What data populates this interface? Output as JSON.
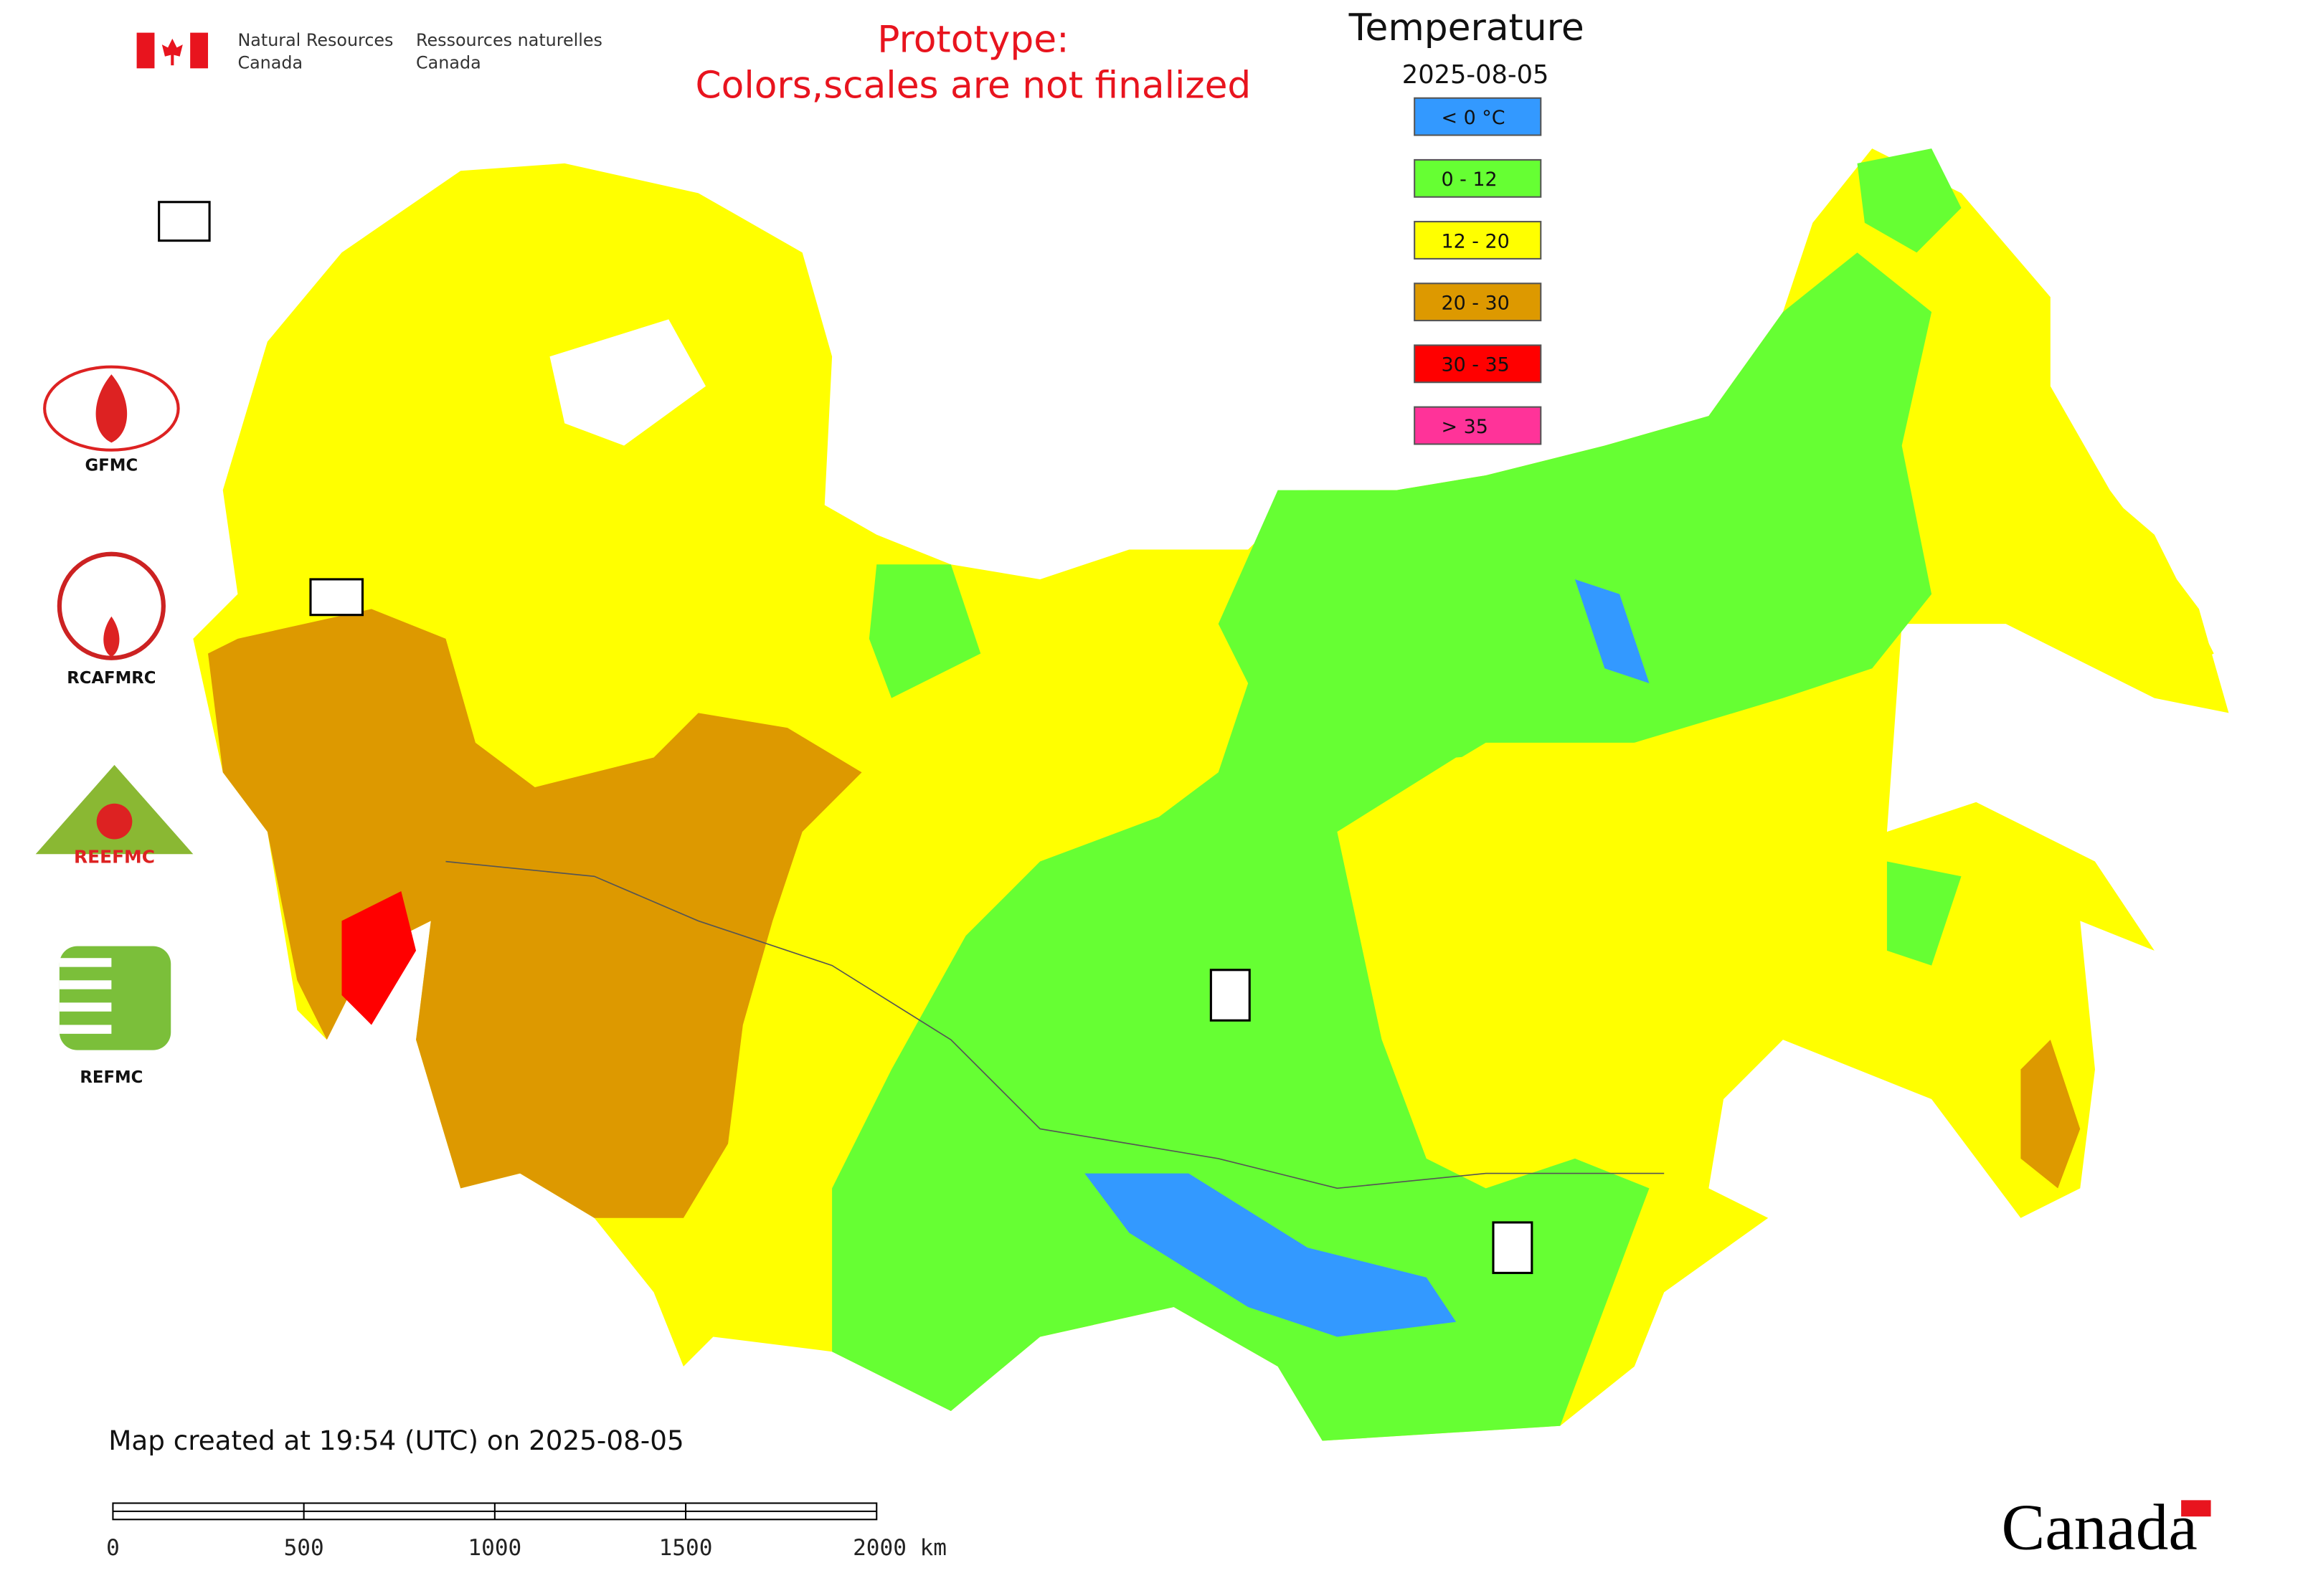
{
  "header": {
    "agency_en": [
      "Natural Resources",
      "Canada"
    ],
    "agency_fr": [
      "Ressources naturelles",
      "Canada"
    ],
    "notice": [
      "Prototype:",
      "Colors,scales are not finalized"
    ]
  },
  "legend": {
    "title": "Temperature",
    "date": "2025-08-05",
    "items": [
      {
        "label": "< 0 °C",
        "color": "#3399ff"
      },
      {
        "label": "0 - 12",
        "color": "#66ff33"
      },
      {
        "label": "12 - 20",
        "color": "#ffff00"
      },
      {
        "label": "20 - 30",
        "color": "#dd9900"
      },
      {
        "label": "30 - 35",
        "color": "#ff0000"
      },
      {
        "label": "> 35",
        "color": "#ff3399"
      }
    ]
  },
  "logos": {
    "gfmc": "GFMC",
    "rcafmrc": "RCAFMRC",
    "reefmc": "REEFMC",
    "refmc": "REFMC"
  },
  "footer": "Map created at 19:54 (UTC) on 2025-08-05",
  "scale_bar": [
    "0",
    "500",
    "1000",
    "1500",
    "2000 km"
  ],
  "wordmark": "Canada"
}
